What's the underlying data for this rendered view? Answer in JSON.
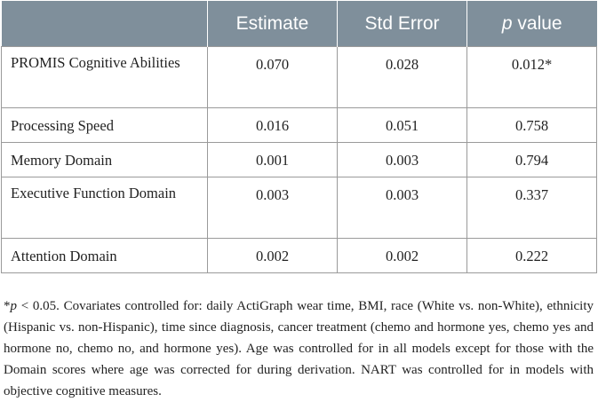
{
  "table": {
    "headers": [
      "",
      "Estimate",
      "Std Error",
      "value"
    ],
    "header_p_prefix": "p",
    "rows": [
      {
        "label": "PROMIS Cognitive Abilities",
        "estimate": "0.070",
        "std_error": "0.028",
        "p_value": "0.012*"
      },
      {
        "label": "Processing Speed",
        "estimate": "0.016",
        "std_error": "0.051",
        "p_value": "0.758"
      },
      {
        "label": "Memory Domain",
        "estimate": "0.001",
        "std_error": "0.003",
        "p_value": "0.794"
      },
      {
        "label": "Executive Function Domain",
        "estimate": "0.003",
        "std_error": "0.003",
        "p_value": "0.337"
      },
      {
        "label": "Attention Domain",
        "estimate": "0.002",
        "std_error": "0.002",
        "p_value": "0.222"
      }
    ]
  },
  "footnote": {
    "marker": "*",
    "p_symbol": "p",
    "text": " < 0.05. Covariates controlled for: daily ActiGraph wear time, BMI, race (White vs. non-White), ethnicity (Hispanic vs. non-Hispanic), time since diagnosis, cancer treatment (chemo and hormone yes, chemo yes and hormone no, chemo no, and hormone yes). Age was controlled for in all models except for those with the Domain scores where age was corrected for during derivation. NART was controlled for in models with objective cognitive measures."
  },
  "colors": {
    "header_bg": "#7f8f9b",
    "header_text": "#ffffff",
    "border": "#9a9a9a"
  }
}
